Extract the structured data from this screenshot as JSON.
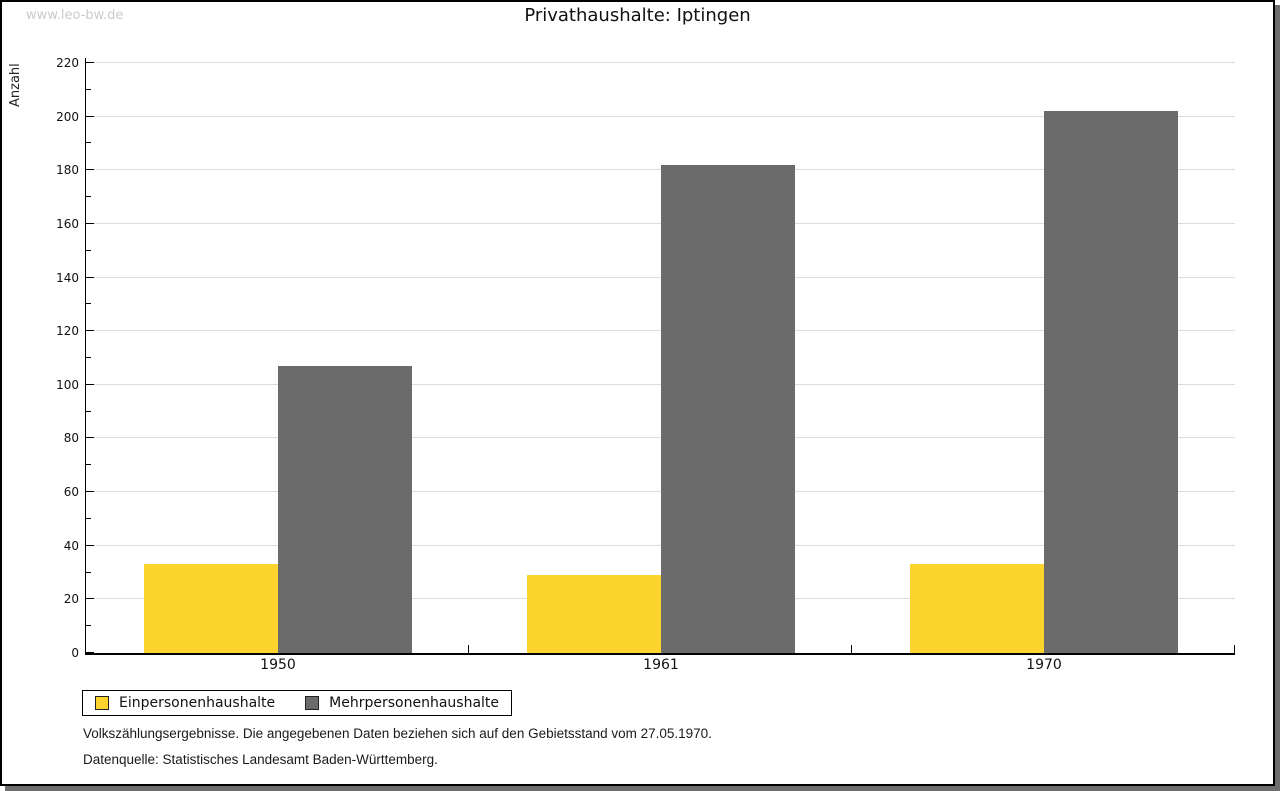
{
  "watermark": "www.leo-bw.de",
  "title": "Privathaushalte: Iptingen",
  "chart_data": {
    "type": "bar",
    "title": "Privathaushalte: Iptingen",
    "categories": [
      "1950",
      "1961",
      "1970"
    ],
    "series": [
      {
        "name": "Einpersonenhaushalte",
        "color": "#FDD32D",
        "values": [
          33,
          29,
          33
        ]
      },
      {
        "name": "Mehrpersonenhaushalte",
        "color": "#6B6B6B",
        "values": [
          107,
          182,
          202
        ]
      }
    ],
    "xlabel": "",
    "ylabel": "Anzahl",
    "ylim": [
      0,
      220
    ],
    "ytick_step": 20,
    "yminor_step": 10,
    "grid": true,
    "legend_position": "bottom-left"
  },
  "footnotes": [
    "Volkszählungsergebnisse. Die angegebenen Daten beziehen sich auf den Gebietsstand vom 27.05.1970.",
    "Datenquelle: Statistisches Landesamt Baden-Württemberg."
  ],
  "colors": {
    "bar_yellow": "#FDD32D",
    "bar_gray": "#6B6B6B",
    "gridline": "#DDDDDD",
    "axis": "#000000",
    "watermark": "#CBCBCB",
    "shadow": "#6E6E6E",
    "background": "#FFFFFF"
  }
}
